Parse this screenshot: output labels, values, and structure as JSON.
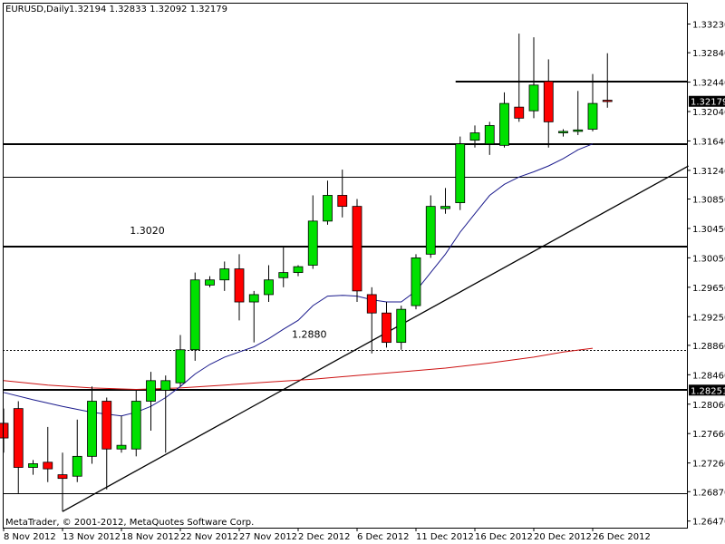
{
  "chart_data": {
    "type": "candlestick",
    "symbol": "EURUSD,Daily",
    "ohlc_header": "1.32194 1.32833 1.32092 1.32179",
    "copyright": "MetaTrader, © 2001-2012, MetaQuotes Software Corp.",
    "ylim": [
      1.2638,
      1.3352
    ],
    "y_ticks": [
      "1.33230",
      "1.32840",
      "1.32440",
      "1.32040",
      "1.31640",
      "1.31240",
      "1.30850",
      "1.30450",
      "1.30050",
      "1.29650",
      "1.29250",
      "1.28860",
      "1.28460",
      "1.28060",
      "1.27660",
      "1.27260",
      "1.26870",
      "1.26470"
    ],
    "x_ticks": [
      {
        "label": "8 Nov 2012",
        "index": 0
      },
      {
        "label": "13 Nov 2012",
        "index": 4
      },
      {
        "label": "18 Nov 2012",
        "index": 8
      },
      {
        "label": "22 Nov 2012",
        "index": 12
      },
      {
        "label": "27 Nov 2012",
        "index": 16
      },
      {
        "label": "2 Dec 2012",
        "index": 20
      },
      {
        "label": "6 Dec 2012",
        "index": 24
      },
      {
        "label": "11 Dec 2012",
        "index": 28
      },
      {
        "label": "16 Dec 2012",
        "index": 32
      },
      {
        "label": "20 Dec 2012",
        "index": 36
      },
      {
        "label": "26 Dec 2012",
        "index": 40
      }
    ],
    "price_labels": [
      {
        "text": "1.32179",
        "value": 1.32179,
        "bg": "#000000",
        "color": "#ffffff"
      },
      {
        "text": "1.28251",
        "value": 1.28251,
        "bg": "#000000",
        "color": "#ffffff"
      }
    ],
    "candles": [
      {
        "o": 1.278,
        "h": 1.28,
        "l": 1.274,
        "c": 1.276
      },
      {
        "o": 1.28,
        "h": 1.281,
        "l": 1.2685,
        "c": 1.272
      },
      {
        "o": 1.272,
        "h": 1.273,
        "l": 1.271,
        "c": 1.2725
      },
      {
        "o": 1.2727,
        "h": 1.2775,
        "l": 1.27,
        "c": 1.2718
      },
      {
        "o": 1.271,
        "h": 1.274,
        "l": 1.266,
        "c": 1.2705
      },
      {
        "o": 1.2708,
        "h": 1.2785,
        "l": 1.27,
        "c": 1.2735
      },
      {
        "o": 1.2735,
        "h": 1.283,
        "l": 1.2725,
        "c": 1.281
      },
      {
        "o": 1.281,
        "h": 1.2815,
        "l": 1.269,
        "c": 1.2745
      },
      {
        "o": 1.2745,
        "h": 1.279,
        "l": 1.274,
        "c": 1.275
      },
      {
        "o": 1.2745,
        "h": 1.2825,
        "l": 1.2735,
        "c": 1.281
      },
      {
        "o": 1.281,
        "h": 1.285,
        "l": 1.277,
        "c": 1.2838
      },
      {
        "o": 1.2825,
        "h": 1.2845,
        "l": 1.274,
        "c": 1.2838
      },
      {
        "o": 1.2835,
        "h": 1.29,
        "l": 1.283,
        "c": 1.288
      },
      {
        "o": 1.288,
        "h": 1.2985,
        "l": 1.2865,
        "c": 1.2975
      },
      {
        "o": 1.2968,
        "h": 1.298,
        "l": 1.2965,
        "c": 1.2975
      },
      {
        "o": 1.2975,
        "h": 1.3,
        "l": 1.296,
        "c": 1.299
      },
      {
        "o": 1.299,
        "h": 1.301,
        "l": 1.292,
        "c": 1.2945
      },
      {
        "o": 1.2945,
        "h": 1.296,
        "l": 1.289,
        "c": 1.2955
      },
      {
        "o": 1.2955,
        "h": 1.2995,
        "l": 1.2945,
        "c": 1.2975
      },
      {
        "o": 1.2978,
        "h": 1.302,
        "l": 1.2965,
        "c": 1.2985
      },
      {
        "o": 1.2985,
        "h": 1.2995,
        "l": 1.298,
        "c": 1.2993
      },
      {
        "o": 1.2995,
        "h": 1.309,
        "l": 1.299,
        "c": 1.3055
      },
      {
        "o": 1.3055,
        "h": 1.311,
        "l": 1.305,
        "c": 1.309
      },
      {
        "o": 1.309,
        "h": 1.3125,
        "l": 1.306,
        "c": 1.3075
      },
      {
        "o": 1.3075,
        "h": 1.3085,
        "l": 1.2945,
        "c": 1.296
      },
      {
        "o": 1.2955,
        "h": 1.2965,
        "l": 1.2875,
        "c": 1.293
      },
      {
        "o": 1.293,
        "h": 1.2945,
        "l": 1.2883,
        "c": 1.289
      },
      {
        "o": 1.289,
        "h": 1.294,
        "l": 1.288,
        "c": 1.2935
      },
      {
        "o": 1.294,
        "h": 1.301,
        "l": 1.2935,
        "c": 1.3005
      },
      {
        "o": 1.301,
        "h": 1.309,
        "l": 1.3005,
        "c": 1.3075
      },
      {
        "o": 1.3072,
        "h": 1.31,
        "l": 1.3065,
        "c": 1.3075
      },
      {
        "o": 1.308,
        "h": 1.317,
        "l": 1.307,
        "c": 1.316
      },
      {
        "o": 1.3165,
        "h": 1.3185,
        "l": 1.3155,
        "c": 1.3175
      },
      {
        "o": 1.316,
        "h": 1.319,
        "l": 1.3145,
        "c": 1.3185
      },
      {
        "o": 1.3158,
        "h": 1.323,
        "l": 1.3155,
        "c": 1.3215
      },
      {
        "o": 1.321,
        "h": 1.331,
        "l": 1.319,
        "c": 1.3195
      },
      {
        "o": 1.3205,
        "h": 1.3305,
        "l": 1.3195,
        "c": 1.324
      },
      {
        "o": 1.3245,
        "h": 1.3275,
        "l": 1.3155,
        "c": 1.319
      },
      {
        "o": 1.3175,
        "h": 1.318,
        "l": 1.317,
        "c": 1.3177
      },
      {
        "o": 1.3177,
        "h": 1.3232,
        "l": 1.3172,
        "c": 1.3179
      },
      {
        "o": 1.318,
        "h": 1.3255,
        "l": 1.3177,
        "c": 1.3215
      },
      {
        "o": 1.32194,
        "h": 1.32833,
        "l": 1.32092,
        "c": 1.32179
      }
    ],
    "levels": [
      {
        "name": "resistance-1.3245",
        "value": 1.3245,
        "from_index": 31,
        "width": 2,
        "style": "solid",
        "color": "#000000"
      },
      {
        "name": "resistance-1.3160",
        "value": 1.316,
        "width": 2,
        "style": "solid",
        "color": "#000000"
      },
      {
        "name": "level-1.3115",
        "value": 1.3115,
        "width": 1,
        "style": "solid",
        "color": "#000000"
      },
      {
        "name": "level-1.3020",
        "value": 1.302,
        "width": 2,
        "style": "solid",
        "color": "#000000",
        "label": "1.3020",
        "label_index": 9
      },
      {
        "name": "level-1.2880",
        "value": 1.288,
        "width": 1,
        "style": "dotted",
        "color": "#000000",
        "label": "1.2880",
        "label_index": 20
      },
      {
        "name": "level-1.28251",
        "value": 1.28251,
        "width": 2,
        "style": "solid",
        "color": "#000000"
      },
      {
        "name": "level-1.2685",
        "value": 1.2685,
        "width": 1,
        "style": "solid",
        "color": "#000000"
      }
    ],
    "trendline": {
      "from": {
        "index": 4,
        "value": 1.266
      },
      "to": {
        "index": 46.5,
        "value": 1.313
      },
      "color": "#000000"
    },
    "ma_fast": {
      "color": "#1a1a8c",
      "points": [
        [
          0,
          1.2822
        ],
        [
          2,
          1.2812
        ],
        [
          4,
          1.2803
        ],
        [
          6,
          1.2795
        ],
        [
          8,
          1.279
        ],
        [
          9,
          1.2795
        ],
        [
          10,
          1.2803
        ],
        [
          11,
          1.2815
        ],
        [
          12,
          1.283
        ],
        [
          13,
          1.2847
        ],
        [
          14,
          1.286
        ],
        [
          15,
          1.287
        ],
        [
          16,
          1.2877
        ],
        [
          17,
          1.2884
        ],
        [
          18,
          1.2895
        ],
        [
          19,
          1.2908
        ],
        [
          20,
          1.292
        ],
        [
          21,
          1.294
        ],
        [
          22,
          1.2953
        ],
        [
          23,
          1.2954
        ],
        [
          24,
          1.2953
        ],
        [
          25,
          1.2948
        ],
        [
          26,
          1.2945
        ],
        [
          27,
          1.2945
        ],
        [
          28,
          1.296
        ],
        [
          29,
          1.2985
        ],
        [
          30,
          1.301
        ],
        [
          31,
          1.304
        ],
        [
          32,
          1.3065
        ],
        [
          33,
          1.309
        ],
        [
          34,
          1.3105
        ],
        [
          35,
          1.3115
        ],
        [
          36,
          1.3122
        ],
        [
          37,
          1.313
        ],
        [
          38,
          1.314
        ],
        [
          39,
          1.3152
        ],
        [
          40,
          1.316
        ]
      ]
    },
    "ma_slow": {
      "color": "#cc1111",
      "points": [
        [
          0,
          1.2838
        ],
        [
          3,
          1.2832
        ],
        [
          6,
          1.2828
        ],
        [
          9,
          1.2826
        ],
        [
          12,
          1.2828
        ],
        [
          15,
          1.2832
        ],
        [
          18,
          1.2836
        ],
        [
          21,
          1.284
        ],
        [
          24,
          1.2845
        ],
        [
          27,
          1.285
        ],
        [
          30,
          1.2855
        ],
        [
          33,
          1.2862
        ],
        [
          36,
          1.287
        ],
        [
          38,
          1.2877
        ],
        [
          40,
          1.2882
        ]
      ]
    }
  }
}
